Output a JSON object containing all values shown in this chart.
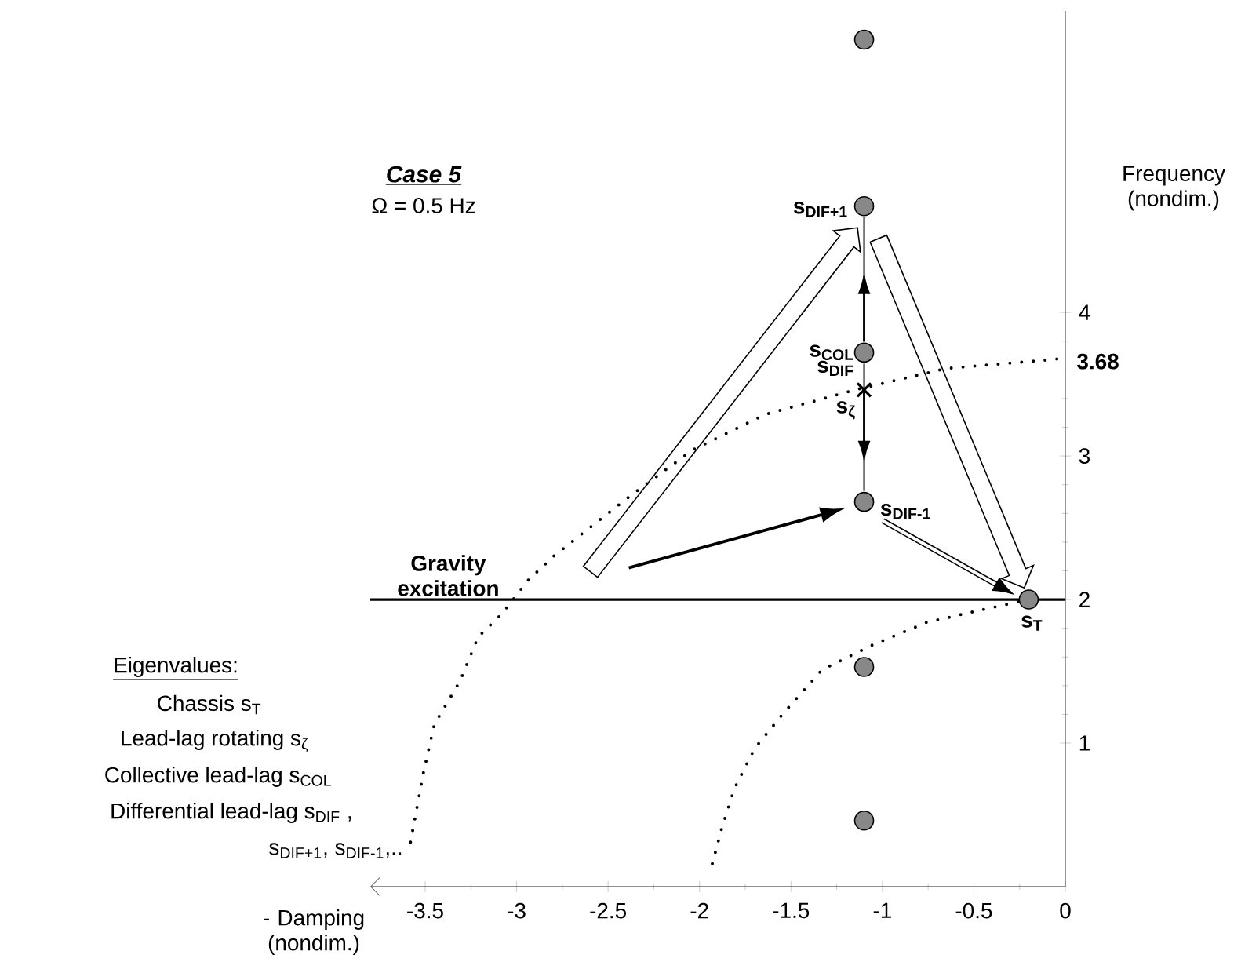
{
  "chart_data": {
    "type": "scatter",
    "title": "Case 5",
    "subtitle": "Ω = 0.5 Hz",
    "xlabel": "- Damping (nondim.)",
    "ylabel": "Frequency (nondim.)",
    "xlim": [
      -3.8,
      0
    ],
    "ylim": [
      0,
      6.1
    ],
    "xticks": [
      -3.5,
      -3,
      -2.5,
      -2,
      -1.5,
      -1,
      -0.5,
      0
    ],
    "yticks": [
      1,
      2,
      3,
      4
    ],
    "series": [
      {
        "marker": "circle",
        "color": "#888888",
        "x": [
          -1.1,
          -1.1,
          -1.1,
          -1.1,
          -0.2,
          -1.1,
          -1.1
        ],
        "values": [
          5.9,
          4.74,
          3.72,
          2.68,
          2.0,
          1.53,
          0.46
        ]
      },
      {
        "marker": "cross",
        "color": "#000000",
        "x": [
          -1.1
        ],
        "values": [
          3.46
        ]
      },
      {
        "type": "line",
        "marker": "none",
        "line_style": "dotted",
        "color": "#000000",
        "x": [
          -3.58,
          -3.51,
          -3.45,
          -3.31,
          -3.21,
          -3.08,
          -2.94,
          -2.8,
          -2.38,
          -2.04,
          -1.64,
          -1.15,
          -0.65,
          0
        ],
        "values": [
          0.31,
          0.79,
          1.13,
          1.43,
          1.74,
          1.9,
          2.13,
          2.3,
          2.72,
          3.04,
          3.29,
          3.46,
          3.61,
          3.68
        ]
      },
      {
        "type": "line",
        "marker": "none",
        "line_style": "dotted",
        "color": "#000000",
        "x": [
          -1.93,
          -1.88,
          -1.81,
          -1.7,
          -1.54,
          -1.33,
          -1.06,
          -0.76,
          -0.45,
          -0.24
        ],
        "values": [
          0.16,
          0.4,
          0.68,
          0.96,
          1.21,
          1.51,
          1.68,
          1.84,
          1.93,
          1.99
        ]
      }
    ],
    "ref_lines": [
      {
        "axis": "y",
        "value": 2,
        "label": "Gravity excitation",
        "color": "#000000"
      }
    ],
    "annotations": [
      "Eigenvalues:",
      "Chassis   s$_{T}$",
      "Lead-lag rotating s$_{ζ}$",
      "Collective lead-lag s$_{COL}$",
      "Differential lead-lag s$_{DIF}$ ,",
      "s$_{DIF+1}$, s$_{DIF-1}$,..",
      {
        "text": "s$_{DIF+1}$",
        "x": -1.1,
        "y": 4.74
      },
      {
        "text": "s$_{COL}$",
        "x": -1.1,
        "y": 3.72
      },
      {
        "text": "s$_{DIF}$",
        "x": -1.1,
        "y": 3.72
      },
      {
        "text": "s$_{ζ}$",
        "x": -1.1,
        "y": 3.46
      },
      {
        "text": "s$_{DIF-1}$",
        "x": -1.1,
        "y": 2.68
      },
      {
        "text": "s$_{T}$",
        "x": -0.2,
        "y": 2.0
      },
      {
        "text": "3.68",
        "x": 0,
        "y": 3.68
      }
    ]
  }
}
